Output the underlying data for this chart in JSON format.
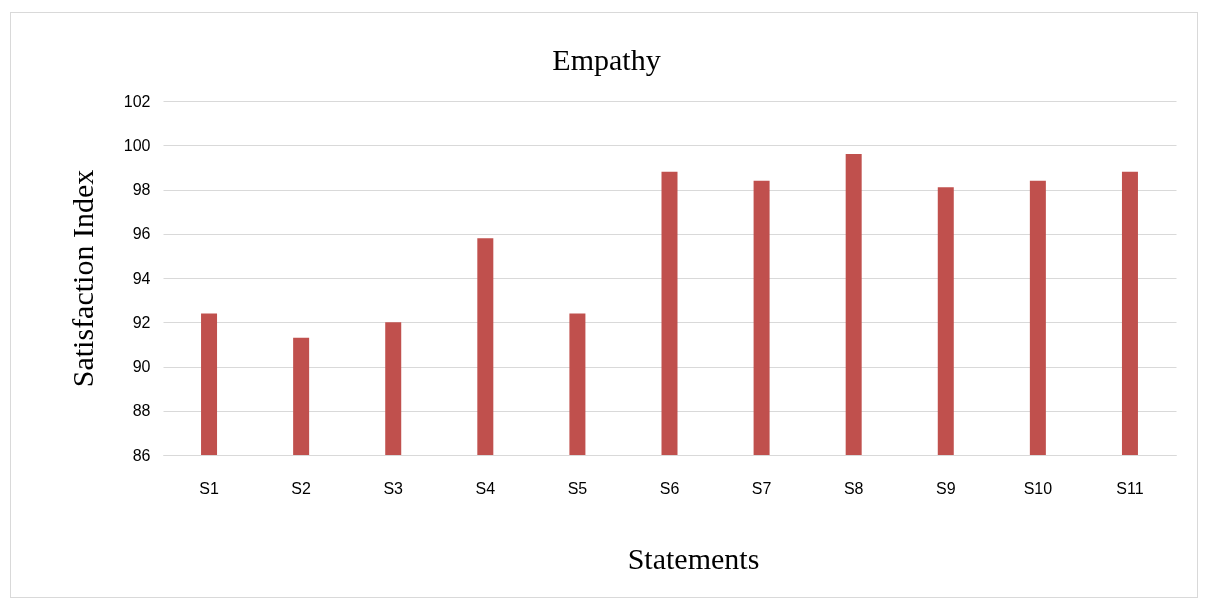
{
  "chart_data": {
    "type": "bar",
    "title": "Empathy",
    "xlabel": "Statements",
    "ylabel": "Satisfaction Index",
    "categories": [
      "S1",
      "S2",
      "S3",
      "S4",
      "S5",
      "S6",
      "S7",
      "S8",
      "S9",
      "S10",
      "S11"
    ],
    "values": [
      92.4,
      91.3,
      92.0,
      95.8,
      92.4,
      98.8,
      98.4,
      99.6,
      98.1,
      98.4,
      98.8
    ],
    "color": "#c0504d",
    "ylim": [
      86,
      102
    ],
    "yticks": [
      86,
      88,
      90,
      92,
      94,
      96,
      98,
      100,
      102
    ],
    "grid": "y"
  }
}
